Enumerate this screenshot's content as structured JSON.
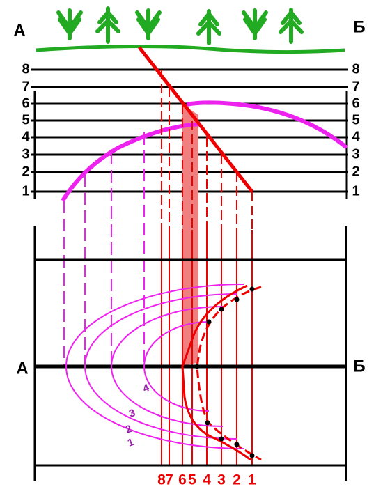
{
  "section": {
    "left_label": "А",
    "right_label": "Б",
    "levels": [
      "1",
      "2",
      "3",
      "4",
      "5",
      "6",
      "7",
      "8"
    ]
  },
  "plan": {
    "left_label": "А",
    "right_label": "Б",
    "columns": [
      "8",
      "7",
      "6",
      "5",
      "4",
      "3",
      "2",
      "1"
    ],
    "contours": [
      "1",
      "2",
      "3",
      "4"
    ]
  }
}
